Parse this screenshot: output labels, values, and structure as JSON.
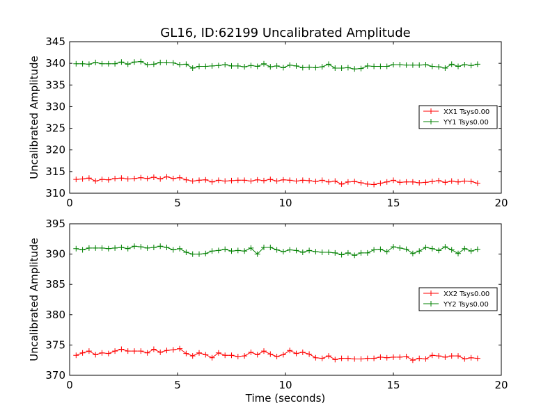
{
  "figure": {
    "title": "GL16, ID:62199 Uncalibrated Amplitude",
    "xlabel": "Time (seconds)"
  },
  "chart_data": [
    {
      "type": "line",
      "title": "GL16, ID:62199 Uncalibrated Amplitude",
      "xlabel": "",
      "ylabel": "Uncalibrated Amplitude",
      "xlim": [
        0,
        20
      ],
      "ylim": [
        310,
        345
      ],
      "xticks": [
        0,
        5,
        10,
        15,
        20
      ],
      "yticks": [
        310,
        315,
        320,
        325,
        330,
        335,
        340,
        345
      ],
      "grid": false,
      "legend_position": "center-right",
      "marker": "+",
      "x": [
        0.3,
        0.6,
        0.9,
        1.2,
        1.5,
        1.8,
        2.1,
        2.4,
        2.7,
        3.0,
        3.3,
        3.6,
        3.9,
        4.2,
        4.5,
        4.8,
        5.1,
        5.4,
        5.7,
        6.0,
        6.3,
        6.6,
        6.9,
        7.2,
        7.5,
        7.8,
        8.1,
        8.4,
        8.7,
        9.0,
        9.3,
        9.6,
        9.9,
        10.2,
        10.5,
        10.8,
        11.1,
        11.4,
        11.7,
        12.0,
        12.3,
        12.6,
        12.9,
        13.2,
        13.5,
        13.8,
        14.1,
        14.4,
        14.7,
        15.0,
        15.3,
        15.6,
        15.9,
        16.2,
        16.5,
        16.8,
        17.1,
        17.4,
        17.7,
        18.0,
        18.3,
        18.6,
        18.9
      ],
      "series": [
        {
          "name": "XX1 Tsys0.00",
          "color": "#ff0000",
          "values": [
            313.2,
            313.3,
            313.5,
            312.8,
            313.2,
            313.1,
            313.4,
            313.5,
            313.3,
            313.4,
            313.6,
            313.4,
            313.7,
            313.3,
            313.8,
            313.4,
            313.6,
            313.1,
            312.8,
            313.0,
            313.1,
            312.6,
            313.0,
            312.8,
            312.9,
            313.0,
            313.0,
            312.8,
            313.1,
            312.9,
            313.2,
            312.8,
            313.1,
            313.0,
            312.8,
            313.0,
            312.9,
            312.7,
            313.0,
            312.6,
            312.8,
            312.1,
            312.6,
            312.7,
            312.4,
            312.1,
            312.0,
            312.3,
            312.6,
            313.0,
            312.5,
            312.6,
            312.6,
            312.4,
            312.5,
            312.7,
            312.9,
            312.5,
            312.8,
            312.6,
            312.8,
            312.7,
            312.3
          ]
        },
        {
          "name": "YY1 Tsys0.00",
          "color": "#008000",
          "values": [
            339.9,
            339.9,
            339.8,
            340.2,
            339.9,
            339.9,
            339.9,
            340.3,
            339.8,
            340.3,
            340.4,
            339.7,
            339.8,
            340.2,
            340.2,
            340.1,
            339.7,
            339.8,
            338.9,
            339.3,
            339.3,
            339.4,
            339.5,
            339.7,
            339.4,
            339.4,
            339.2,
            339.5,
            339.3,
            339.9,
            339.2,
            339.4,
            339.0,
            339.6,
            339.4,
            339.0,
            339.1,
            339.0,
            339.2,
            339.8,
            338.9,
            338.9,
            339.0,
            338.7,
            338.8,
            339.4,
            339.3,
            339.3,
            339.3,
            339.7,
            339.7,
            339.6,
            339.6,
            339.6,
            339.7,
            339.3,
            339.2,
            338.9,
            339.8,
            339.3,
            339.7,
            339.5,
            339.8
          ]
        }
      ]
    },
    {
      "type": "line",
      "title": "",
      "xlabel": "Time (seconds)",
      "ylabel": "Uncalibrated Amplitude",
      "xlim": [
        0,
        20
      ],
      "ylim": [
        370,
        395
      ],
      "xticks": [
        0,
        5,
        10,
        15,
        20
      ],
      "yticks": [
        370,
        375,
        380,
        385,
        390,
        395
      ],
      "grid": false,
      "legend_position": "center-right",
      "marker": "+",
      "x": [
        0.3,
        0.6,
        0.9,
        1.2,
        1.5,
        1.8,
        2.1,
        2.4,
        2.7,
        3.0,
        3.3,
        3.6,
        3.9,
        4.2,
        4.5,
        4.8,
        5.1,
        5.4,
        5.7,
        6.0,
        6.3,
        6.6,
        6.9,
        7.2,
        7.5,
        7.8,
        8.1,
        8.4,
        8.7,
        9.0,
        9.3,
        9.6,
        9.9,
        10.2,
        10.5,
        10.8,
        11.1,
        11.4,
        11.7,
        12.0,
        12.3,
        12.6,
        12.9,
        13.2,
        13.5,
        13.8,
        14.1,
        14.4,
        14.7,
        15.0,
        15.3,
        15.6,
        15.9,
        16.2,
        16.5,
        16.8,
        17.1,
        17.4,
        17.7,
        18.0,
        18.3,
        18.6,
        18.9
      ],
      "series": [
        {
          "name": "XX2 Tsys0.00",
          "color": "#ff0000",
          "values": [
            373.3,
            373.7,
            374.0,
            373.4,
            373.7,
            373.6,
            374.0,
            374.3,
            374.0,
            374.0,
            374.0,
            373.7,
            374.3,
            373.8,
            374.1,
            374.2,
            374.4,
            373.6,
            373.2,
            373.7,
            373.4,
            372.9,
            373.7,
            373.3,
            373.3,
            373.1,
            373.2,
            373.8,
            373.4,
            374.0,
            373.5,
            373.1,
            373.4,
            374.1,
            373.6,
            373.8,
            373.5,
            372.9,
            372.8,
            373.2,
            372.6,
            372.8,
            372.8,
            372.7,
            372.7,
            372.8,
            372.8,
            373.0,
            372.9,
            373.0,
            373.0,
            373.1,
            372.5,
            372.8,
            372.7,
            373.3,
            373.2,
            373.0,
            373.2,
            373.2,
            372.7,
            372.9,
            372.8
          ]
        },
        {
          "name": "YY2 Tsys0.00",
          "color": "#008000",
          "values": [
            390.9,
            390.7,
            391.0,
            391.0,
            391.0,
            390.9,
            391.0,
            391.1,
            390.9,
            391.3,
            391.2,
            391.0,
            391.1,
            391.3,
            391.1,
            390.7,
            390.9,
            390.3,
            390.0,
            390.0,
            390.1,
            390.5,
            390.6,
            390.8,
            390.5,
            390.6,
            390.5,
            391.0,
            390.0,
            391.1,
            391.1,
            390.7,
            390.4,
            390.7,
            390.6,
            390.3,
            390.6,
            390.4,
            390.3,
            390.3,
            390.2,
            389.9,
            390.2,
            389.8,
            390.2,
            390.2,
            390.7,
            390.8,
            390.4,
            391.2,
            391.0,
            390.8,
            390.1,
            390.5,
            391.1,
            390.9,
            390.6,
            391.2,
            390.7,
            390.1,
            390.9,
            390.5,
            390.8
          ]
        }
      ]
    }
  ]
}
